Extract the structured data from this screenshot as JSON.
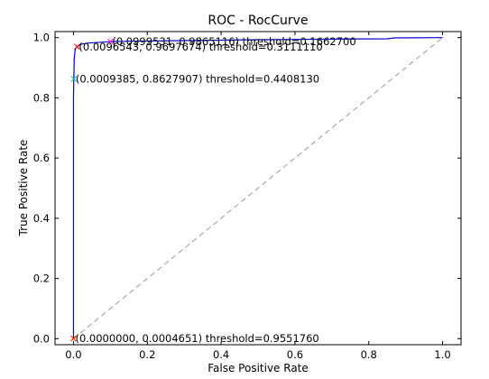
{
  "chart_data": {
    "type": "line",
    "title": "ROC - RocCurve",
    "xlabel": "False Positive Rate",
    "ylabel": "True Positive Rate",
    "xlim": [
      -0.05,
      1.05
    ],
    "ylim": [
      -0.02,
      1.02
    ],
    "xticks": [
      "0.0",
      "0.2",
      "0.4",
      "0.6",
      "0.8",
      "1.0"
    ],
    "yticks": [
      "0.0",
      "0.2",
      "0.4",
      "0.6",
      "0.8",
      "1.0"
    ],
    "grid": false,
    "colors": {
      "roc": "#0000cc",
      "reference": "#999999",
      "markers": [
        "#ff00ff",
        "#ff0000",
        "#00bfbf",
        "#ff0000"
      ]
    },
    "series": [
      {
        "x": [
          0.0,
          0.0,
          0.0,
          0.0,
          0.0,
          0.0,
          0.0006,
          0.0009385,
          0.002,
          0.004,
          0.006,
          0.0096543,
          0.02,
          0.04,
          0.0999531,
          0.15,
          0.3,
          0.5,
          0.6,
          0.7,
          0.85,
          0.87,
          1.0
        ],
        "y": [
          0.0,
          0.0004651,
          0.1,
          0.3,
          0.6,
          0.8,
          0.85,
          0.8627907,
          0.93,
          0.955,
          0.965,
          0.9697674,
          0.978,
          0.982,
          0.9865116,
          0.988,
          0.99,
          0.993,
          0.994,
          0.995,
          0.996,
          0.999,
          1.0
        ]
      },
      {
        "x": [
          0.0,
          1.0
        ],
        "y": [
          0.0,
          1.0
        ]
      }
    ],
    "annotations": [
      {
        "x": 0.0999531,
        "y": 0.9865116,
        "text": "(0.0999531, 0.9865116) threshold=0.1662700"
      },
      {
        "x": 0.0096543,
        "y": 0.9697674,
        "text": "(0.0096543, 0.9697674) threshold=0.3111110"
      },
      {
        "x": 0.0009385,
        "y": 0.8627907,
        "text": "(0.0009385, 0.8627907) threshold=0.4408130"
      },
      {
        "x": 0.0,
        "y": 0.0004651,
        "text": "(0.0000000, 0.0004651) threshold=0.9551760"
      }
    ]
  }
}
